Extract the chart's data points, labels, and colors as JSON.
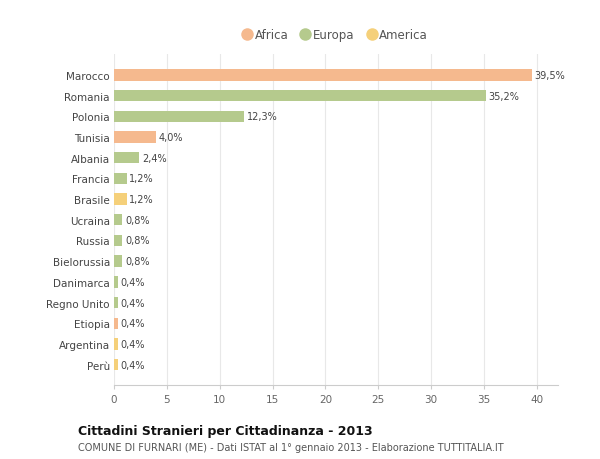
{
  "categories": [
    "Perù",
    "Argentina",
    "Etiopia",
    "Regno Unito",
    "Danimarca",
    "Bielorussia",
    "Russia",
    "Ucraina",
    "Brasile",
    "Francia",
    "Albania",
    "Tunisia",
    "Polonia",
    "Romania",
    "Marocco"
  ],
  "values": [
    0.4,
    0.4,
    0.4,
    0.4,
    0.4,
    0.8,
    0.8,
    0.8,
    1.2,
    1.2,
    2.4,
    4.0,
    12.3,
    35.2,
    39.5
  ],
  "labels": [
    "0,4%",
    "0,4%",
    "0,4%",
    "0,4%",
    "0,4%",
    "0,8%",
    "0,8%",
    "0,8%",
    "1,2%",
    "1,2%",
    "2,4%",
    "4,0%",
    "12,3%",
    "35,2%",
    "39,5%"
  ],
  "bar_colors": {
    "Marocco": "#f5b98e",
    "Romania": "#b5ca8d",
    "Polonia": "#b5ca8d",
    "Tunisia": "#f5b98e",
    "Albania": "#b5ca8d",
    "Francia": "#b5ca8d",
    "Brasile": "#f5d07a",
    "Ucraina": "#b5ca8d",
    "Russia": "#b5ca8d",
    "Bielorussia": "#b5ca8d",
    "Danimarca": "#b5ca8d",
    "Regno Unito": "#b5ca8d",
    "Etiopia": "#f5b98e",
    "Argentina": "#f5d07a",
    "Perù": "#f5d07a"
  },
  "legend": [
    {
      "label": "Africa",
      "color": "#f5b98e"
    },
    {
      "label": "Europa",
      "color": "#b5ca8d"
    },
    {
      "label": "America",
      "color": "#f5d07a"
    }
  ],
  "title": "Cittadini Stranieri per Cittadinanza - 2013",
  "subtitle": "COMUNE DI FURNARI (ME) - Dati ISTAT al 1° gennaio 2013 - Elaborazione TUTTITALIA.IT",
  "xlim": [
    0,
    42
  ],
  "xticks": [
    0,
    5,
    10,
    15,
    20,
    25,
    30,
    35,
    40
  ],
  "background_color": "#ffffff",
  "grid_color": "#e8e8e8"
}
